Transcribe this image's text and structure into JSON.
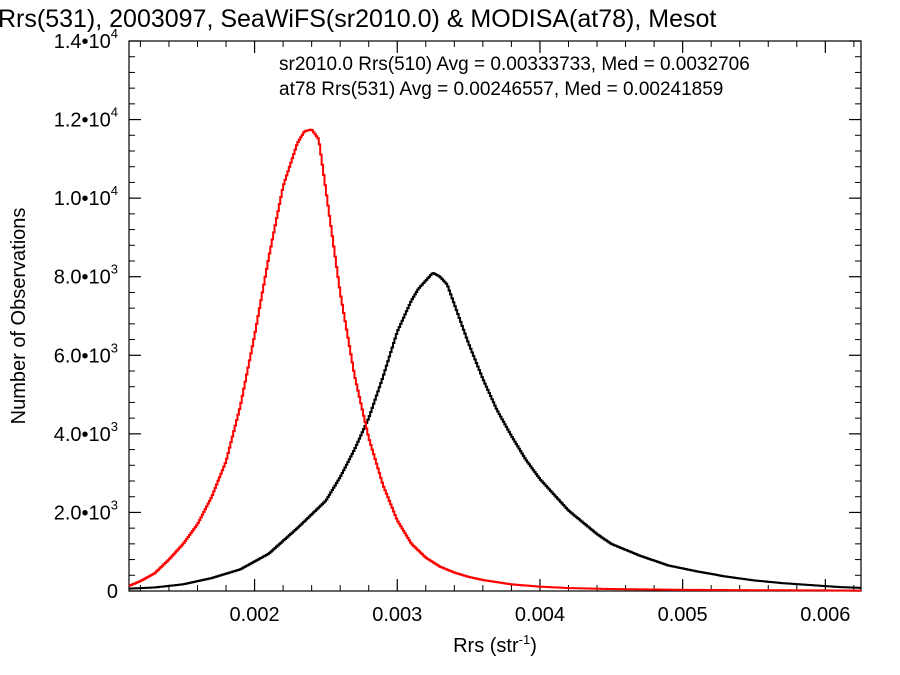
{
  "chart_data": {
    "type": "line",
    "title": "Rrs(531), 2003097, SeaWiFS(sr2010.0) & MODISA(at78), Mesot",
    "xlabel": "Rrs (str",
    "xlabel_exponent": "-1",
    "xlabel_close": ")",
    "ylabel": "Number of Observations",
    "xlim": [
      0.00112,
      0.00625
    ],
    "ylim": [
      0,
      14000
    ],
    "xticks": [
      {
        "value": 0.002,
        "label": "0.002"
      },
      {
        "value": 0.003,
        "label": "0.003"
      },
      {
        "value": 0.004,
        "label": "0.004"
      },
      {
        "value": 0.005,
        "label": "0.005"
      },
      {
        "value": 0.006,
        "label": "0.006"
      }
    ],
    "yticks": [
      {
        "value": 0,
        "mant": "0",
        "exp": ""
      },
      {
        "value": 2000,
        "mant": "2.0•10",
        "exp": "3"
      },
      {
        "value": 4000,
        "mant": "4.0•10",
        "exp": "3"
      },
      {
        "value": 6000,
        "mant": "6.0•10",
        "exp": "3"
      },
      {
        "value": 8000,
        "mant": "8.0•10",
        "exp": "3"
      },
      {
        "value": 10000,
        "mant": "1.0•10",
        "exp": "4"
      },
      {
        "value": 12000,
        "mant": "1.2•10",
        "exp": "4"
      },
      {
        "value": 14000,
        "mant": "1.4•10",
        "exp": "4"
      }
    ],
    "annotations": [
      {
        "text": "sr2010.0 Rrs(510) Avg = 0.00333733, Med = 0.0032706",
        "color": "#000000"
      },
      {
        "text": "at78 Rrs(531) Avg = 0.00246557, Med = 0.00241859",
        "color": "#ff0000"
      }
    ],
    "series": [
      {
        "color": "#000000",
        "x": [
          0.00112,
          0.0013,
          0.0015,
          0.0017,
          0.0019,
          0.0021,
          0.0023,
          0.0025,
          0.0026,
          0.0027,
          0.0028,
          0.0029,
          0.003,
          0.0031,
          0.00315,
          0.0032,
          0.00325,
          0.0033,
          0.00335,
          0.0034,
          0.0035,
          0.0036,
          0.0037,
          0.0038,
          0.0039,
          0.004,
          0.0041,
          0.0042,
          0.0043,
          0.0044,
          0.0045,
          0.0047,
          0.0049,
          0.0051,
          0.0053,
          0.0055,
          0.0057,
          0.0059,
          0.0061,
          0.00625
        ],
        "y": [
          60,
          90,
          170,
          330,
          550,
          950,
          1600,
          2300,
          2900,
          3600,
          4400,
          5450,
          6600,
          7400,
          7700,
          7900,
          8100,
          8000,
          7800,
          7300,
          6300,
          5400,
          4600,
          3950,
          3350,
          2850,
          2450,
          2050,
          1750,
          1450,
          1200,
          900,
          650,
          500,
          370,
          270,
          200,
          150,
          100,
          80
        ]
      },
      {
        "color": "#ff0000",
        "x": [
          0.00112,
          0.0012,
          0.0013,
          0.0014,
          0.0015,
          0.0016,
          0.0017,
          0.0018,
          0.0019,
          0.002,
          0.0021,
          0.0022,
          0.0023,
          0.00235,
          0.0024,
          0.00245,
          0.0025,
          0.0026,
          0.0027,
          0.0028,
          0.0029,
          0.003,
          0.0031,
          0.0032,
          0.0033,
          0.0034,
          0.0035,
          0.0036,
          0.0038,
          0.004,
          0.0042,
          0.0045,
          0.005,
          0.0055,
          0.006,
          0.00625
        ],
        "y": [
          130,
          250,
          450,
          800,
          1200,
          1700,
          2400,
          3300,
          4700,
          6500,
          8500,
          10300,
          11400,
          11700,
          11750,
          11500,
          10200,
          7600,
          5500,
          3900,
          2700,
          1800,
          1200,
          850,
          620,
          470,
          360,
          280,
          170,
          110,
          75,
          50,
          30,
          20,
          15,
          10
        ]
      }
    ]
  }
}
